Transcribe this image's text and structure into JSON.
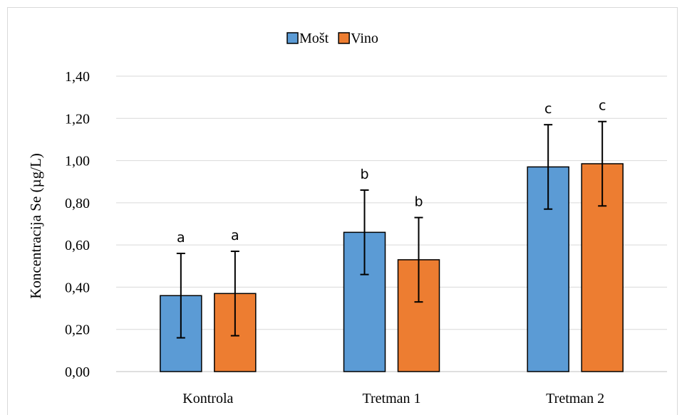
{
  "chart_data": {
    "type": "bar",
    "title": "",
    "xlabel": "",
    "ylabel": "Koncentracija Se (µg/L)",
    "categories": [
      "Kontrola",
      "Tretman 1",
      "Tretman 2"
    ],
    "series": [
      {
        "name": "Mošt",
        "color": "#5b9bd5",
        "values": [
          0.36,
          0.66,
          0.97
        ],
        "errors": [
          0.2,
          0.2,
          0.2
        ],
        "letters": [
          "a",
          "b",
          "c"
        ]
      },
      {
        "name": "Vino",
        "color": "#ed7d31",
        "values": [
          0.37,
          0.53,
          0.985
        ],
        "errors": [
          0.2,
          0.2,
          0.2
        ],
        "letters": [
          "a",
          "b",
          "c"
        ]
      }
    ],
    "ylim": [
      0,
      1.4
    ],
    "yticks": [
      "0,00",
      "0,20",
      "0,40",
      "0,60",
      "0,80",
      "1,00",
      "1,20",
      "1,40"
    ],
    "grid": true,
    "legend": "top-center"
  }
}
